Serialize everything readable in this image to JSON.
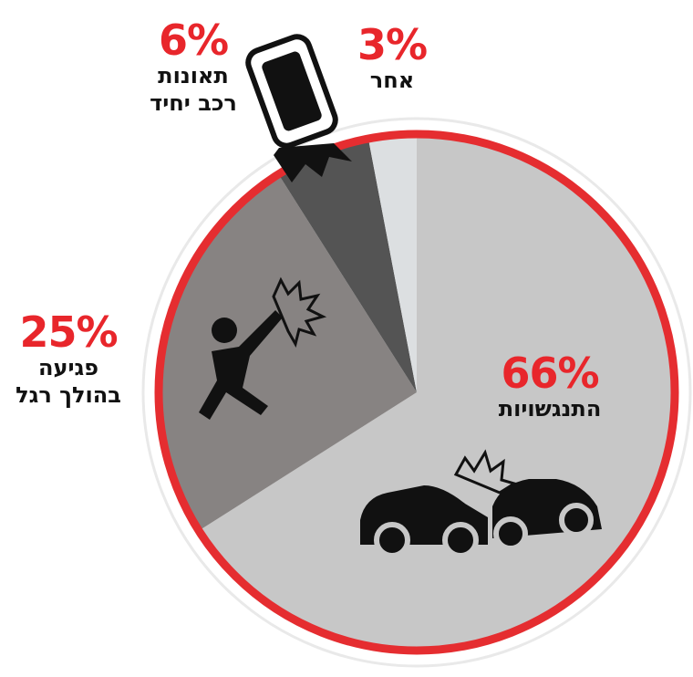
{
  "chart_data": {
    "type": "pie",
    "categories": [
      "התנגשויות",
      "פגיעה\nבהולך רגל",
      "תאונות\nרכב יחיד",
      "אחר"
    ],
    "values": [
      66,
      25,
      6,
      3
    ],
    "value_labels": [
      "66%",
      "25%",
      "6%",
      "3%"
    ],
    "colors": [
      "#c7c7c7",
      "#878382",
      "#545454",
      "#dcdfe1"
    ],
    "ring_color": "#e52d30"
  }
}
